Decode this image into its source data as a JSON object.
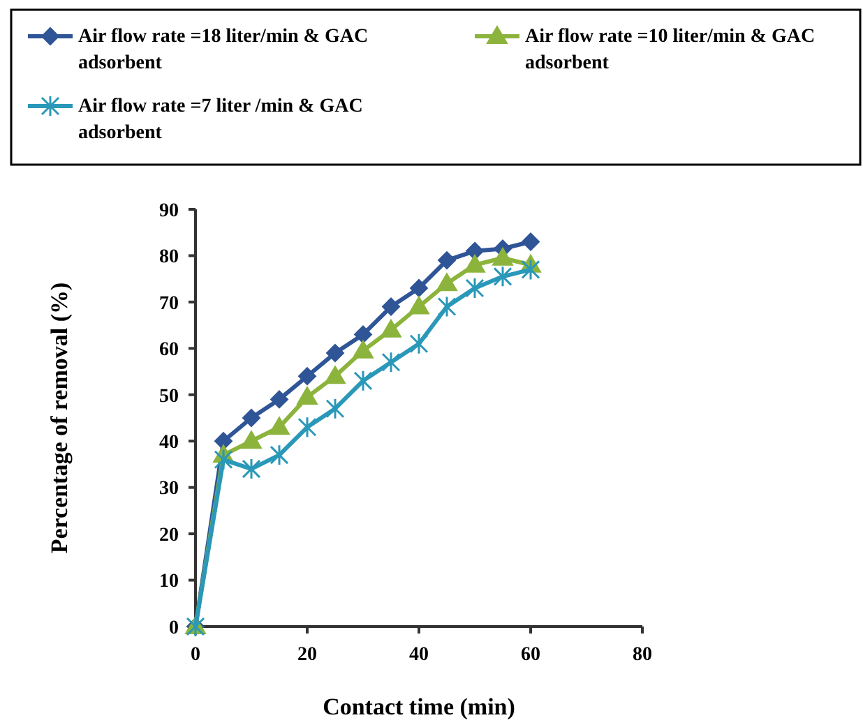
{
  "chart_data": {
    "type": "line",
    "xlabel": "Contact time (min)",
    "ylabel": "Percentage of removal (%)",
    "x": [
      0,
      5,
      10,
      15,
      20,
      25,
      30,
      35,
      40,
      45,
      50,
      55,
      60
    ],
    "series": [
      {
        "name": "Air flow rate =18 liter/min & GAC adsorbent",
        "color": "#2f5597",
        "marker": "diamond",
        "values": [
          0,
          40,
          45,
          49,
          54,
          59,
          63,
          69,
          73,
          79,
          81,
          81.5,
          83
        ]
      },
      {
        "name": "Air flow rate =10 liter/min  & GAC adsorbent",
        "color": "#8cb43c",
        "marker": "triangle",
        "values": [
          0,
          37,
          40,
          43,
          49.5,
          54,
          59.5,
          64,
          69,
          74,
          78,
          79.5,
          78
        ]
      },
      {
        "name": "Air flow rate =7 liter /min  & GAC adsorbent",
        "color": "#2a98b8",
        "marker": "cross",
        "values": [
          0,
          36,
          34,
          37,
          43,
          47,
          53,
          57,
          61,
          69,
          73,
          75.5,
          77
        ]
      }
    ],
    "xlim": [
      0,
      80
    ],
    "xticks": [
      0,
      20,
      40,
      60,
      80
    ],
    "ylim": [
      0,
      90
    ],
    "yticks": [
      0,
      10,
      20,
      30,
      40,
      50,
      60,
      70,
      80,
      90
    ],
    "grid": false,
    "legend": "top"
  }
}
